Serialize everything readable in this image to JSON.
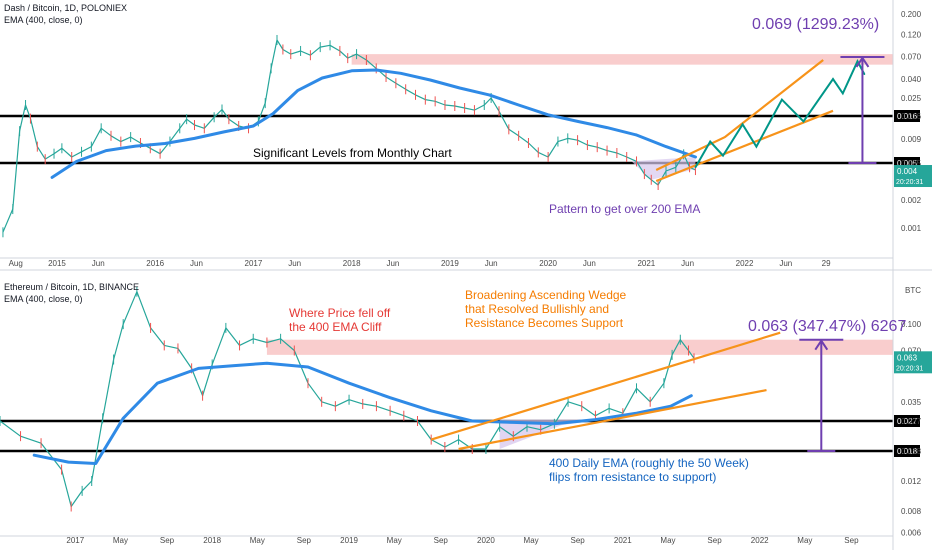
{
  "colors": {
    "price": "#26a69a",
    "price_down": "#ef5350",
    "ema": "#2f8ae6",
    "wedge": "#f7931a",
    "projection": "#009688",
    "measure": "#6f3fb0",
    "level": "#000000",
    "resistance_zone": "#f8c4c4",
    "pattern_fill": "#d7c7ee",
    "ann_red": "#e53935",
    "ann_orange": "#f57c00",
    "ann_purple": "#6f3fb0",
    "ann_blue": "#1565c0"
  },
  "chart_data": [
    {
      "type": "line",
      "title": "Dash / Bitcoin, 1D, POLONIEX",
      "legend": "EMA (400, close, 0)",
      "scale": "log",
      "x_ticks": [
        "Aug",
        "2015",
        "Jun",
        "2016",
        "Jun",
        "2017",
        "Jun",
        "2018",
        "Jun",
        "2019",
        "Jun",
        "2020",
        "Jun",
        "2021",
        "Jun",
        "2022",
        "Jun",
        "29"
      ],
      "y_ticks": [
        0.2,
        0.12,
        0.07,
        0.04,
        0.025,
        0.016,
        0.009,
        0.005,
        0.003,
        0.002,
        0.001
      ],
      "y_tick_labels": [
        "0.200",
        "0.120",
        "0.070",
        "0.040",
        "0.025",
        "0.016",
        "0.009",
        "0.005",
        "0.003",
        "0.002",
        "0.001"
      ],
      "levels": [
        {
          "value": 0.016,
          "label": "0.016"
        },
        {
          "value": 0.005,
          "label": "0.005"
        }
      ],
      "last_price": {
        "value": 0.004,
        "label": "0.004",
        "time": "20:20:31"
      },
      "resistance_zone": [
        0.057,
        0.074
      ],
      "price_series": [
        {
          "x": 2014.45,
          "y": 0.0009
        },
        {
          "x": 2014.55,
          "y": 0.0016
        },
        {
          "x": 2014.62,
          "y": 0.011
        },
        {
          "x": 2014.68,
          "y": 0.021
        },
        {
          "x": 2014.73,
          "y": 0.015
        },
        {
          "x": 2014.8,
          "y": 0.0075
        },
        {
          "x": 2014.88,
          "y": 0.0055
        },
        {
          "x": 2014.97,
          "y": 0.0063
        },
        {
          "x": 2015.05,
          "y": 0.0072
        },
        {
          "x": 2015.15,
          "y": 0.0058
        },
        {
          "x": 2015.25,
          "y": 0.0066
        },
        {
          "x": 2015.35,
          "y": 0.0075
        },
        {
          "x": 2015.45,
          "y": 0.0118
        },
        {
          "x": 2015.55,
          "y": 0.0098
        },
        {
          "x": 2015.65,
          "y": 0.0085
        },
        {
          "x": 2015.75,
          "y": 0.0095
        },
        {
          "x": 2015.85,
          "y": 0.0082
        },
        {
          "x": 2015.95,
          "y": 0.0072
        },
        {
          "x": 2016.05,
          "y": 0.0063
        },
        {
          "x": 2016.15,
          "y": 0.0085
        },
        {
          "x": 2016.25,
          "y": 0.0118
        },
        {
          "x": 2016.32,
          "y": 0.0148
        },
        {
          "x": 2016.4,
          "y": 0.0128
        },
        {
          "x": 2016.5,
          "y": 0.0118
        },
        {
          "x": 2016.6,
          "y": 0.0155
        },
        {
          "x": 2016.68,
          "y": 0.0188
        },
        {
          "x": 2016.75,
          "y": 0.0148
        },
        {
          "x": 2016.85,
          "y": 0.0125
        },
        {
          "x": 2016.95,
          "y": 0.0118
        },
        {
          "x": 2017.05,
          "y": 0.014
        },
        {
          "x": 2017.12,
          "y": 0.022
        },
        {
          "x": 2017.18,
          "y": 0.052
        },
        {
          "x": 2017.24,
          "y": 0.105
        },
        {
          "x": 2017.3,
          "y": 0.083
        },
        {
          "x": 2017.38,
          "y": 0.074
        },
        {
          "x": 2017.48,
          "y": 0.08
        },
        {
          "x": 2017.58,
          "y": 0.072
        },
        {
          "x": 2017.68,
          "y": 0.088
        },
        {
          "x": 2017.78,
          "y": 0.092
        },
        {
          "x": 2017.88,
          "y": 0.08
        },
        {
          "x": 2017.96,
          "y": 0.067
        },
        {
          "x": 2018.05,
          "y": 0.074
        },
        {
          "x": 2018.15,
          "y": 0.064
        },
        {
          "x": 2018.25,
          "y": 0.052
        },
        {
          "x": 2018.35,
          "y": 0.042
        },
        {
          "x": 2018.45,
          "y": 0.036
        },
        {
          "x": 2018.55,
          "y": 0.031
        },
        {
          "x": 2018.65,
          "y": 0.027
        },
        {
          "x": 2018.75,
          "y": 0.024
        },
        {
          "x": 2018.85,
          "y": 0.023
        },
        {
          "x": 2018.95,
          "y": 0.021
        },
        {
          "x": 2019.05,
          "y": 0.0205
        },
        {
          "x": 2019.15,
          "y": 0.0195
        },
        {
          "x": 2019.25,
          "y": 0.0185
        },
        {
          "x": 2019.35,
          "y": 0.021
        },
        {
          "x": 2019.42,
          "y": 0.025
        },
        {
          "x": 2019.5,
          "y": 0.018
        },
        {
          "x": 2019.6,
          "y": 0.0115
        },
        {
          "x": 2019.7,
          "y": 0.0098
        },
        {
          "x": 2019.8,
          "y": 0.0082
        },
        {
          "x": 2019.9,
          "y": 0.0065
        },
        {
          "x": 2020.0,
          "y": 0.0058
        },
        {
          "x": 2020.1,
          "y": 0.0085
        },
        {
          "x": 2020.2,
          "y": 0.0092
        },
        {
          "x": 2020.3,
          "y": 0.0088
        },
        {
          "x": 2020.4,
          "y": 0.0078
        },
        {
          "x": 2020.5,
          "y": 0.0074
        },
        {
          "x": 2020.6,
          "y": 0.0068
        },
        {
          "x": 2020.7,
          "y": 0.0064
        },
        {
          "x": 2020.8,
          "y": 0.0058
        },
        {
          "x": 2020.9,
          "y": 0.0052
        },
        {
          "x": 2020.98,
          "y": 0.0038
        },
        {
          "x": 2021.05,
          "y": 0.0033
        },
        {
          "x": 2021.12,
          "y": 0.0029
        },
        {
          "x": 2021.2,
          "y": 0.0041
        },
        {
          "x": 2021.3,
          "y": 0.0045
        },
        {
          "x": 2021.38,
          "y": 0.0062
        },
        {
          "x": 2021.44,
          "y": 0.0045
        },
        {
          "x": 2021.5,
          "y": 0.0042
        }
      ],
      "ema_series": [
        {
          "x": 2014.95,
          "y": 0.0035
        },
        {
          "x": 2015.2,
          "y": 0.0052
        },
        {
          "x": 2015.5,
          "y": 0.0068
        },
        {
          "x": 2015.8,
          "y": 0.0076
        },
        {
          "x": 2016.1,
          "y": 0.0081
        },
        {
          "x": 2016.4,
          "y": 0.0092
        },
        {
          "x": 2016.7,
          "y": 0.0108
        },
        {
          "x": 2017.0,
          "y": 0.0125
        },
        {
          "x": 2017.2,
          "y": 0.017
        },
        {
          "x": 2017.45,
          "y": 0.03
        },
        {
          "x": 2017.7,
          "y": 0.041
        },
        {
          "x": 2018.0,
          "y": 0.049
        },
        {
          "x": 2018.25,
          "y": 0.05
        },
        {
          "x": 2018.5,
          "y": 0.046
        },
        {
          "x": 2018.8,
          "y": 0.039
        },
        {
          "x": 2019.1,
          "y": 0.032
        },
        {
          "x": 2019.4,
          "y": 0.027
        },
        {
          "x": 2019.7,
          "y": 0.021
        },
        {
          "x": 2020.0,
          "y": 0.0165
        },
        {
          "x": 2020.3,
          "y": 0.014
        },
        {
          "x": 2020.6,
          "y": 0.012
        },
        {
          "x": 2020.9,
          "y": 0.01
        },
        {
          "x": 2021.2,
          "y": 0.0075
        },
        {
          "x": 2021.5,
          "y": 0.0058
        }
      ],
      "wedge_upper": [
        {
          "x": 2021.1,
          "y": 0.0042
        },
        {
          "x": 2021.8,
          "y": 0.0095
        },
        {
          "x": 2022.8,
          "y": 0.064
        }
      ],
      "wedge_lower": [
        {
          "x": 2021.1,
          "y": 0.0032
        },
        {
          "x": 2022.9,
          "y": 0.0182
        }
      ],
      "projection": [
        {
          "x": 2021.5,
          "y": 0.0045
        },
        {
          "x": 2021.65,
          "y": 0.0085
        },
        {
          "x": 2021.78,
          "y": 0.006
        },
        {
          "x": 2021.98,
          "y": 0.013
        },
        {
          "x": 2022.12,
          "y": 0.0075
        },
        {
          "x": 2022.38,
          "y": 0.024
        },
        {
          "x": 2022.6,
          "y": 0.014
        },
        {
          "x": 2022.9,
          "y": 0.04
        },
        {
          "x": 2023.0,
          "y": 0.028
        },
        {
          "x": 2023.15,
          "y": 0.062
        },
        {
          "x": 2023.22,
          "y": 0.045
        }
      ],
      "measure": {
        "from": 0.005,
        "to": 0.069,
        "x": 2023.2
      },
      "annotations": {
        "measure_label": "0.069 (1299.23%)",
        "levels_note": "Significant Levels from Monthly Chart",
        "pattern_note": "Pattern to get over 200 EMA"
      }
    },
    {
      "type": "line",
      "title": "Ethereum / Bitcoin, 1D, BINANCE",
      "legend": "EMA (400, close, 0)",
      "scale": "log",
      "unit": "BTC",
      "x_ticks": [
        "2017",
        "May",
        "Sep",
        "2018",
        "May",
        "Sep",
        "2019",
        "May",
        "Sep",
        "2020",
        "May",
        "Sep",
        "2021",
        "May",
        "Sep",
        "2022",
        "May",
        "Sep"
      ],
      "y_ticks": [
        0.1,
        0.07,
        0.035,
        0.027,
        0.018,
        0.012,
        0.008,
        0.006
      ],
      "y_tick_labels": [
        "0.100",
        "0.070",
        "0.035",
        "0.027",
        "0.018",
        "0.012",
        "0.008",
        "0.006"
      ],
      "levels": [
        {
          "value": 0.027,
          "label": "0.027"
        },
        {
          "value": 0.018,
          "label": "0.018"
        }
      ],
      "last_price": {
        "value": 0.063,
        "label": "0.063",
        "time": "20:20:31"
      },
      "resistance_zone": [
        0.066,
        0.081
      ],
      "price_series": [
        {
          "x": 2016.45,
          "y": 0.027
        },
        {
          "x": 2016.6,
          "y": 0.022
        },
        {
          "x": 2016.75,
          "y": 0.02
        },
        {
          "x": 2016.9,
          "y": 0.014
        },
        {
          "x": 2016.97,
          "y": 0.0085
        },
        {
          "x": 2017.05,
          "y": 0.0105
        },
        {
          "x": 2017.12,
          "y": 0.012
        },
        {
          "x": 2017.2,
          "y": 0.028
        },
        {
          "x": 2017.28,
          "y": 0.062
        },
        {
          "x": 2017.35,
          "y": 0.1
        },
        {
          "x": 2017.45,
          "y": 0.155
        },
        {
          "x": 2017.55,
          "y": 0.095
        },
        {
          "x": 2017.65,
          "y": 0.075
        },
        {
          "x": 2017.75,
          "y": 0.072
        },
        {
          "x": 2017.85,
          "y": 0.055
        },
        {
          "x": 2017.93,
          "y": 0.038
        },
        {
          "x": 2018.0,
          "y": 0.058
        },
        {
          "x": 2018.1,
          "y": 0.095
        },
        {
          "x": 2018.2,
          "y": 0.075
        },
        {
          "x": 2018.3,
          "y": 0.082
        },
        {
          "x": 2018.4,
          "y": 0.078
        },
        {
          "x": 2018.5,
          "y": 0.082
        },
        {
          "x": 2018.6,
          "y": 0.07
        },
        {
          "x": 2018.7,
          "y": 0.045
        },
        {
          "x": 2018.8,
          "y": 0.035
        },
        {
          "x": 2018.9,
          "y": 0.033
        },
        {
          "x": 2019.0,
          "y": 0.036
        },
        {
          "x": 2019.1,
          "y": 0.034
        },
        {
          "x": 2019.2,
          "y": 0.033
        },
        {
          "x": 2019.3,
          "y": 0.031
        },
        {
          "x": 2019.4,
          "y": 0.029
        },
        {
          "x": 2019.5,
          "y": 0.027
        },
        {
          "x": 2019.6,
          "y": 0.021
        },
        {
          "x": 2019.7,
          "y": 0.019
        },
        {
          "x": 2019.8,
          "y": 0.021
        },
        {
          "x": 2019.9,
          "y": 0.0185
        },
        {
          "x": 2020.0,
          "y": 0.0185
        },
        {
          "x": 2020.1,
          "y": 0.025
        },
        {
          "x": 2020.2,
          "y": 0.022
        },
        {
          "x": 2020.3,
          "y": 0.025
        },
        {
          "x": 2020.4,
          "y": 0.024
        },
        {
          "x": 2020.5,
          "y": 0.026
        },
        {
          "x": 2020.6,
          "y": 0.035
        },
        {
          "x": 2020.7,
          "y": 0.033
        },
        {
          "x": 2020.8,
          "y": 0.029
        },
        {
          "x": 2020.9,
          "y": 0.032
        },
        {
          "x": 2021.0,
          "y": 0.03
        },
        {
          "x": 2021.1,
          "y": 0.042
        },
        {
          "x": 2021.2,
          "y": 0.035
        },
        {
          "x": 2021.3,
          "y": 0.045
        },
        {
          "x": 2021.36,
          "y": 0.066
        },
        {
          "x": 2021.42,
          "y": 0.081
        },
        {
          "x": 2021.48,
          "y": 0.07
        },
        {
          "x": 2021.52,
          "y": 0.063
        }
      ],
      "ema_series": [
        {
          "x": 2016.7,
          "y": 0.017
        },
        {
          "x": 2016.95,
          "y": 0.0155
        },
        {
          "x": 2017.15,
          "y": 0.0152
        },
        {
          "x": 2017.35,
          "y": 0.028
        },
        {
          "x": 2017.6,
          "y": 0.045
        },
        {
          "x": 2017.9,
          "y": 0.055
        },
        {
          "x": 2018.15,
          "y": 0.057
        },
        {
          "x": 2018.4,
          "y": 0.059
        },
        {
          "x": 2018.7,
          "y": 0.056
        },
        {
          "x": 2019.0,
          "y": 0.045
        },
        {
          "x": 2019.3,
          "y": 0.037
        },
        {
          "x": 2019.6,
          "y": 0.031
        },
        {
          "x": 2019.9,
          "y": 0.027
        },
        {
          "x": 2020.2,
          "y": 0.0265
        },
        {
          "x": 2020.5,
          "y": 0.026
        },
        {
          "x": 2020.8,
          "y": 0.0275
        },
        {
          "x": 2021.1,
          "y": 0.03
        },
        {
          "x": 2021.35,
          "y": 0.033
        },
        {
          "x": 2021.5,
          "y": 0.038
        }
      ],
      "wedge_upper": [
        {
          "x": 2019.6,
          "y": 0.021
        },
        {
          "x": 2022.15,
          "y": 0.089
        }
      ],
      "wedge_lower": [
        {
          "x": 2019.8,
          "y": 0.0185
        },
        {
          "x": 2022.05,
          "y": 0.041
        }
      ],
      "measure": {
        "from": 0.018,
        "to": 0.081,
        "x": 2022.45
      },
      "annotations": {
        "measure_label": "0.063 (347.47%) 6267",
        "cliff_note": [
          "Where Price fell off",
          "the 400 EMA Cliff"
        ],
        "wedge_note": [
          "Broadening Ascending Wedge",
          "that Resolved Bullishly and",
          "Resistance Becomes Support"
        ],
        "ema_note": [
          "400 Daily EMA  (roughly the 50 Week)",
          "flips from resistance to support)"
        ]
      }
    }
  ]
}
